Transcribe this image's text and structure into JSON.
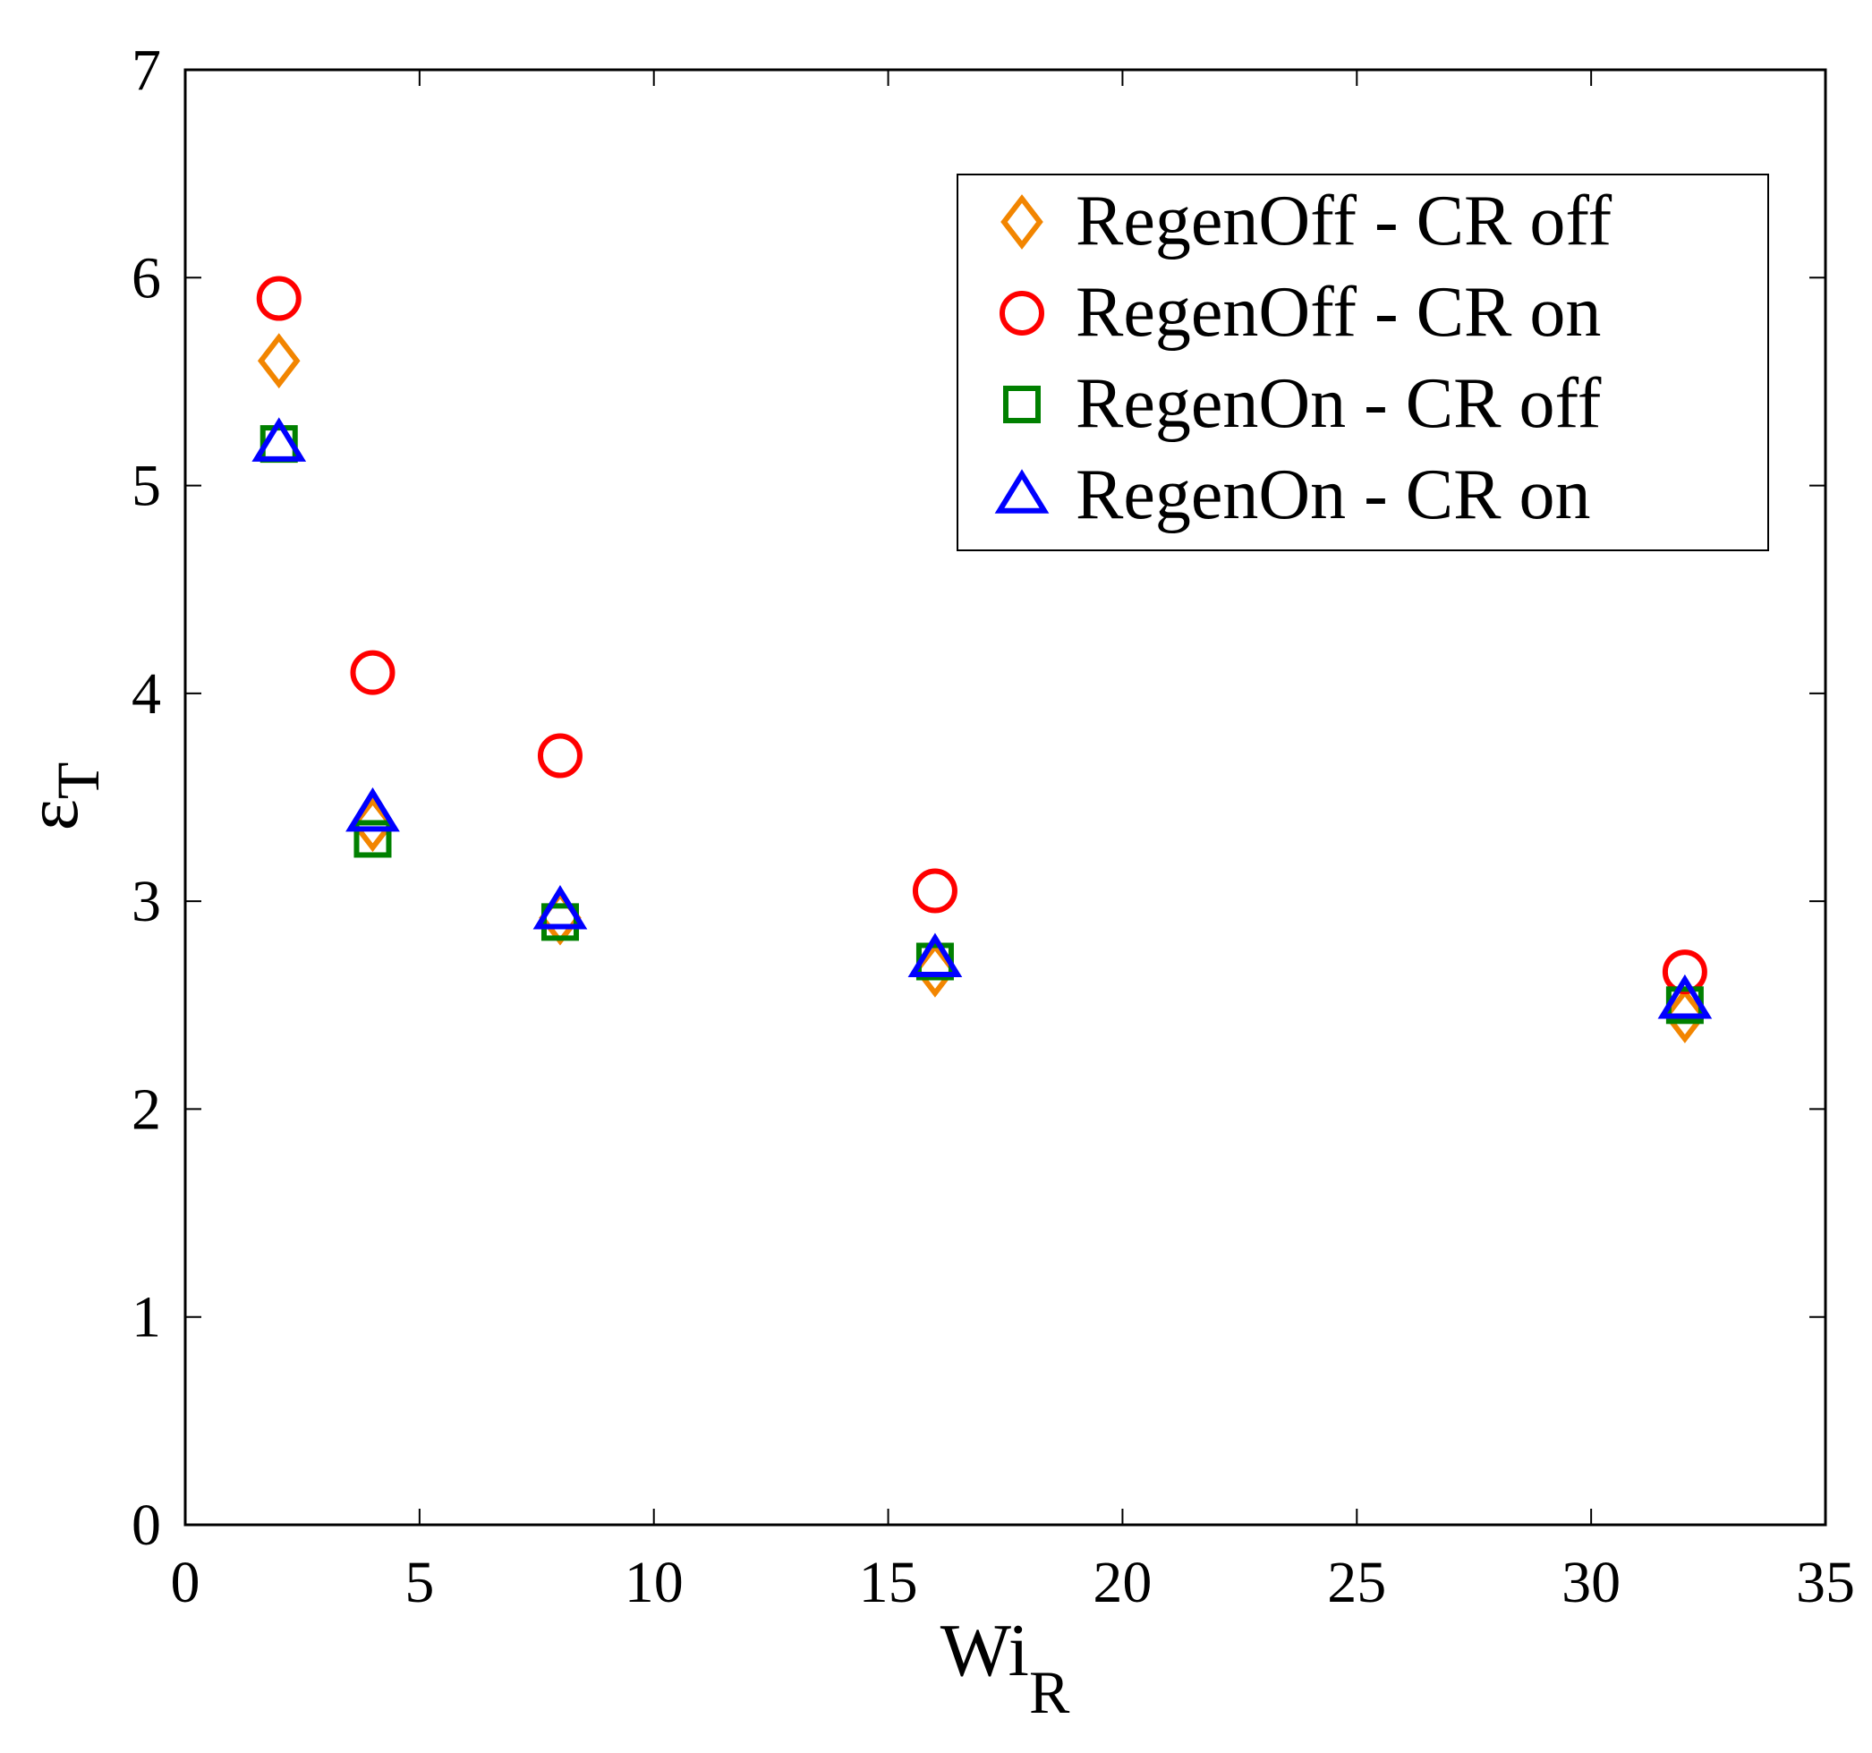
{
  "chart_data": {
    "type": "scatter",
    "title": "",
    "xlabel": "Wi",
    "xlabel_sub": "R",
    "ylabel": "ε",
    "ylabel_sub": "T",
    "xlim": [
      0,
      35
    ],
    "ylim": [
      0,
      7
    ],
    "xticks": [
      "0",
      "5",
      "10",
      "15",
      "20",
      "25",
      "30",
      "35"
    ],
    "yticks": [
      "0",
      "1",
      "2",
      "3",
      "4",
      "5",
      "6",
      "7"
    ],
    "grid": false,
    "legend_position": "top-right",
    "x": [
      2,
      4,
      8,
      16,
      32
    ],
    "series": [
      {
        "name": "RegenOff - CR off",
        "marker": "diamond",
        "color": "#F28500",
        "values": [
          5.6,
          3.37,
          2.92,
          2.67,
          2.45
        ]
      },
      {
        "name": "RegenOff - CR on",
        "marker": "circle",
        "color": "#FF0000",
        "values": [
          5.9,
          4.1,
          3.7,
          3.05,
          2.66
        ]
      },
      {
        "name": "RegenOn - CR off",
        "marker": "square",
        "color": "#008000",
        "values": [
          5.2,
          3.3,
          2.9,
          2.71,
          2.5
        ]
      },
      {
        "name": "RegenOn - CR on",
        "marker": "triangle",
        "color": "#0000FF",
        "values": [
          5.2,
          3.42,
          2.95,
          2.72,
          2.52
        ]
      }
    ]
  }
}
